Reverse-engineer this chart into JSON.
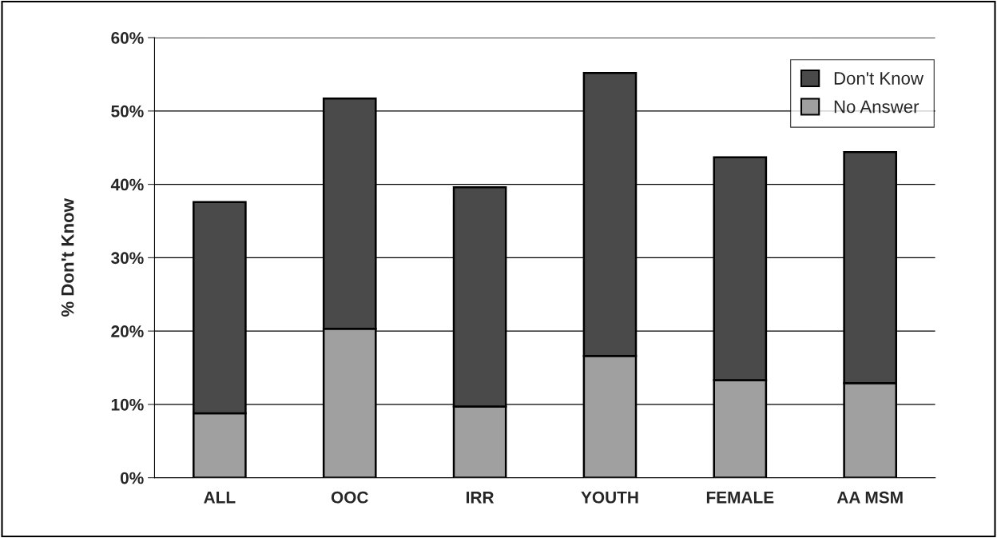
{
  "chart_data": {
    "type": "bar",
    "stacked": true,
    "ylabel": "% Don't Know",
    "categories": [
      "ALL",
      "OOC",
      "IRR",
      "YOUTH",
      "FEMALE",
      "AA MSM"
    ],
    "series": [
      {
        "name": "No Answer",
        "color": "#a0a0a0",
        "values": [
          8.8,
          20.3,
          9.7,
          16.6,
          13.3,
          12.9
        ]
      },
      {
        "name": "Don't Know",
        "color": "#4a4a4a",
        "values": [
          28.8,
          31.4,
          29.9,
          38.6,
          30.4,
          31.5
        ]
      }
    ],
    "ylim": [
      0,
      60
    ],
    "yticks": [
      {
        "value": 0,
        "label": "0%"
      },
      {
        "value": 10,
        "label": "10%"
      },
      {
        "value": 20,
        "label": "20%"
      },
      {
        "value": 30,
        "label": "30%"
      },
      {
        "value": 40,
        "label": "40%"
      },
      {
        "value": 50,
        "label": "50%"
      },
      {
        "value": 60,
        "label": "60%"
      }
    ],
    "grid": "y",
    "legend": "top right"
  }
}
